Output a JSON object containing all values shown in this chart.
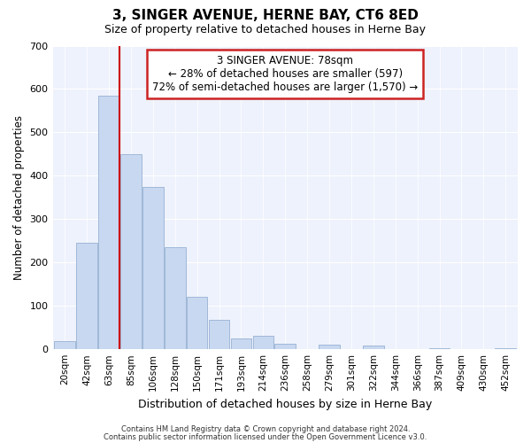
{
  "title": "3, SINGER AVENUE, HERNE BAY, CT6 8ED",
  "subtitle": "Size of property relative to detached houses in Herne Bay",
  "xlabel": "Distribution of detached houses by size in Herne Bay",
  "ylabel": "Number of detached properties",
  "bar_labels": [
    "20sqm",
    "42sqm",
    "63sqm",
    "85sqm",
    "106sqm",
    "128sqm",
    "150sqm",
    "171sqm",
    "193sqm",
    "214sqm",
    "236sqm",
    "258sqm",
    "279sqm",
    "301sqm",
    "322sqm",
    "344sqm",
    "366sqm",
    "387sqm",
    "409sqm",
    "430sqm",
    "452sqm"
  ],
  "bar_values": [
    18,
    245,
    585,
    450,
    375,
    235,
    120,
    68,
    25,
    30,
    12,
    0,
    10,
    0,
    8,
    0,
    0,
    3,
    0,
    0,
    2
  ],
  "bar_color": "#c8d8f0",
  "bar_edge_color": "#a0b8d8",
  "vline_color": "#cc0000",
  "vline_bar_index": 2,
  "annotation_line1": "3 SINGER AVENUE: 78sqm",
  "annotation_line2": "← 28% of detached houses are smaller (597)",
  "annotation_line3": "72% of semi-detached houses are larger (1,570) →",
  "annotation_box_color": "#ffffff",
  "annotation_box_edge": "#cc2222",
  "ylim": [
    0,
    700
  ],
  "yticks": [
    0,
    100,
    200,
    300,
    400,
    500,
    600,
    700
  ],
  "footer_line1": "Contains HM Land Registry data © Crown copyright and database right 2024.",
  "footer_line2": "Contains public sector information licensed under the Open Government Licence v3.0.",
  "background_color": "#ffffff",
  "plot_bg_color": "#eef2fc"
}
